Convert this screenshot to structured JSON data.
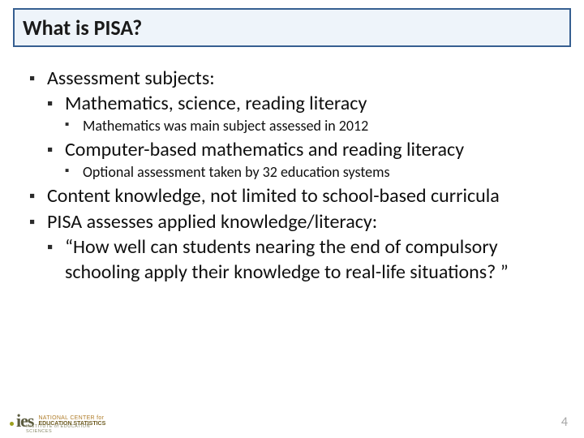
{
  "title": "What is PISA?",
  "bullets": {
    "b1": "Assessment subjects:",
    "b1_1": "Mathematics, science, reading literacy",
    "b1_1_1": "Mathematics was main subject assessed in 2012",
    "b1_2": "Computer-based mathematics and reading literacy",
    "b1_2_1": "Optional assessment taken by 32 education systems",
    "b2": "Content knowledge, not limited to school-based curricula",
    "b3": "PISA assesses applied knowledge/literacy:",
    "b3_1": "“How well can students nearing the end of compulsory schooling apply their knowledge to real-life situations? ”"
  },
  "logo": {
    "ies": "ies",
    "line1": "NATIONAL CENTER for",
    "line2": "EDUCATION STATISTICS",
    "sub": "INSTITUTE of EDUCATION SCIENCES"
  },
  "page_number": "4",
  "colors": {
    "title_border": "#365f91",
    "title_bg": "#eef4fa",
    "text": "#0f0f0f",
    "page_num": "#a6a6a6"
  }
}
